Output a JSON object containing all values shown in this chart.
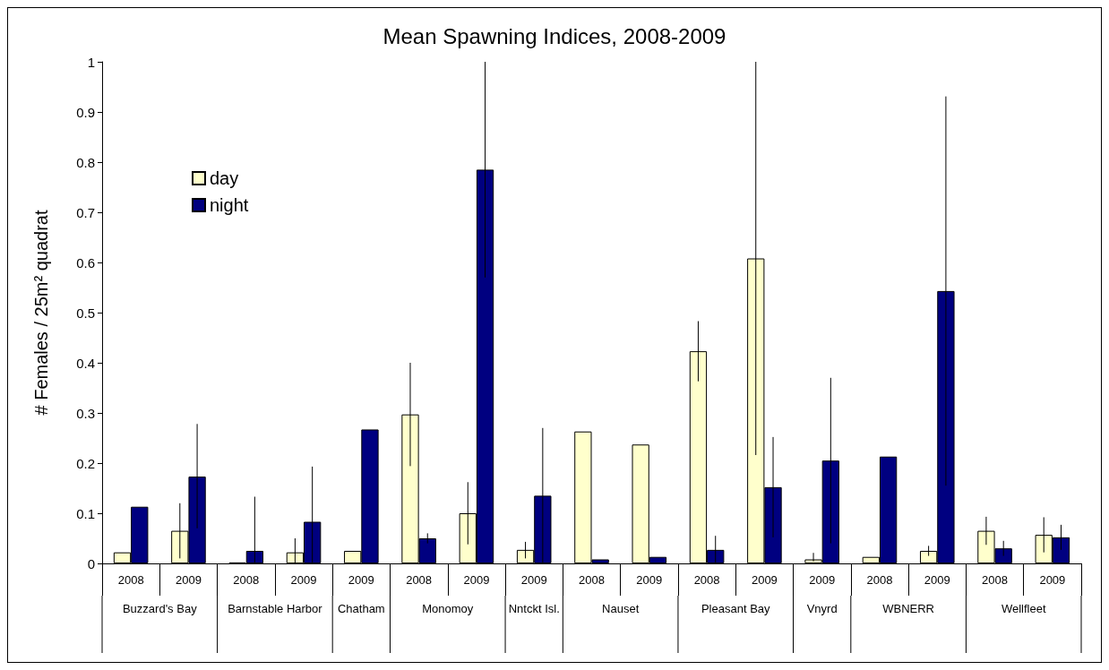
{
  "chart_data": {
    "type": "bar",
    "title": "Mean Spawning Indices, 2008-2009",
    "ylabel": "# Females / 25m² quadrat",
    "categories": [
      "2008",
      "2009",
      "2008",
      "2009",
      "2009",
      "2008",
      "2009",
      "2009",
      "2008",
      "2009",
      "2008",
      "2009",
      "2009",
      "2008",
      "2009",
      "2008",
      "2009"
    ],
    "annotations": [
      "Buzzard's Bay",
      "Barnstable Harbor",
      "Chatham",
      "Monomoy",
      "Nntckt Isl.",
      "Nauset",
      "Pleasant Bay",
      "Vnyrd",
      "WBNERR",
      "Wellfleet"
    ],
    "series": [
      {
        "name": "day",
        "color": "#ffffcc",
        "values": [
          0.022,
          0.065,
          0.002,
          0.022,
          0.025,
          0.297,
          0.1,
          0.027,
          0.263,
          0.237,
          0.423,
          0.608,
          0.008,
          0.013,
          0.025,
          0.065,
          0.057
        ],
        "errors": [
          null,
          [
            0.01,
            0.12
          ],
          null,
          [
            0,
            0.05
          ],
          null,
          0.103,
          0.062,
          [
            0.01,
            0.043
          ],
          null,
          null,
          0.06,
          0.392,
          [
            0.004,
            0.021
          ],
          null,
          [
            0.015,
            0.035
          ],
          0.028,
          0.035
        ]
      },
      {
        "name": "night",
        "color": "#000080",
        "values": [
          0.113,
          0.173,
          0.025,
          0.083,
          0.267,
          0.05,
          0.785,
          0.135,
          0.008,
          0.013,
          0.027,
          0.152,
          0.205,
          0.213,
          0.543,
          0.03,
          0.052
        ],
        "errors": [
          null,
          [
            0.07,
            0.278
          ],
          [
            0,
            0.133
          ],
          [
            0,
            0.193
          ],
          null,
          0.01,
          0.215,
          [
            0,
            0.27
          ],
          null,
          null,
          0.028,
          0.1,
          0.165,
          null,
          0.388,
          0.015,
          0.025
        ]
      }
    ],
    "ylim": [
      0,
      1
    ],
    "yticks": [
      0,
      0.1,
      0.2,
      0.3,
      0.4,
      0.5,
      0.6,
      0.7,
      0.8,
      0.9,
      1
    ],
    "grid": false,
    "legend": "top left"
  }
}
